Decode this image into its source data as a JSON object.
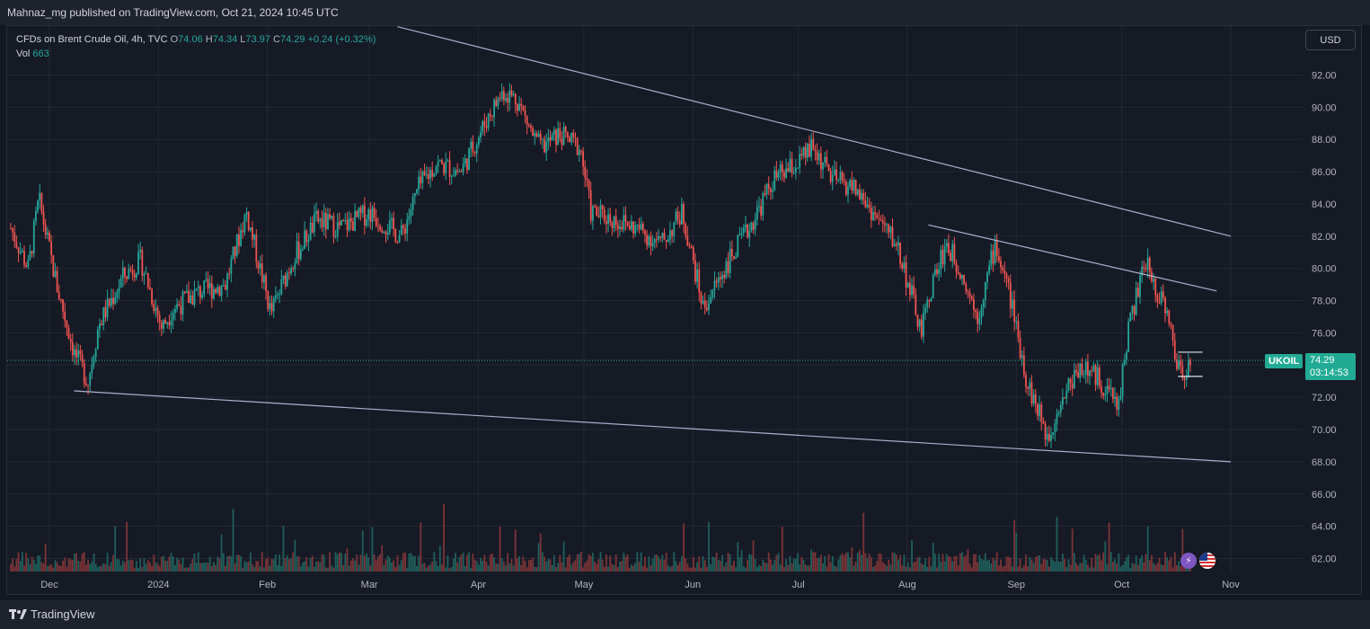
{
  "publisher": "Mahnaz_mg published on TradingView.com, Oct 21, 2024 10:45 UTC",
  "legend": {
    "symbol": "CFDs on Brent Crude Oil, 4h, TVC",
    "o_label": "O",
    "o_value": "74.06",
    "h_label": "H",
    "h_value": "74.34",
    "l_label": "L",
    "l_value": "73.97",
    "c_label": "C",
    "c_value": "74.29",
    "change": "+0.24 (+0.32%)",
    "vol_label": "Vol",
    "vol_value": "663"
  },
  "currency_button": "USD",
  "price_tag": {
    "symbol": "UKOIL",
    "price": "74.29",
    "countdown": "03:14:53"
  },
  "footer_brand": "TradingView",
  "colors": {
    "background": "#161a25",
    "up": "#26a69a",
    "down": "#ef5350",
    "trendline": "#c5cae9",
    "tag": "#22ab94"
  },
  "icons": [
    "flash-icon",
    "us-flag-icon",
    "tradingview-logo-icon"
  ],
  "chart_data": {
    "type": "candlestick",
    "symbol": "UKOIL",
    "timeframe": "4h",
    "x_range": [
      "2023-11-20",
      "2024-11-10"
    ],
    "y_ticks": [
      "92.00",
      "90.00",
      "88.00",
      "86.00",
      "84.00",
      "82.00",
      "80.00",
      "78.00",
      "76.00",
      "74.00",
      "72.00",
      "70.00",
      "68.00",
      "66.00",
      "64.00",
      "62.00"
    ],
    "ylim": [
      61.0,
      94.5
    ],
    "x_tick_labels": [
      {
        "label": "Dec",
        "date": "2023-12-01"
      },
      {
        "label": "2024",
        "date": "2024-01-01"
      },
      {
        "label": "Feb",
        "date": "2024-02-01"
      },
      {
        "label": "Mar",
        "date": "2024-03-01"
      },
      {
        "label": "Apr",
        "date": "2024-04-01"
      },
      {
        "label": "May",
        "date": "2024-05-01"
      },
      {
        "label": "Jun",
        "date": "2024-06-01"
      },
      {
        "label": "Jul",
        "date": "2024-07-01"
      },
      {
        "label": "Aug",
        "date": "2024-08-01"
      },
      {
        "label": "Sep",
        "date": "2024-09-01"
      },
      {
        "label": "Oct",
        "date": "2024-10-01"
      },
      {
        "label": "Nov",
        "date": "2024-11-01"
      }
    ],
    "price_path": [
      {
        "date": "2023-11-20",
        "price": 82.5
      },
      {
        "date": "2023-11-25",
        "price": 80.0
      },
      {
        "date": "2023-11-28",
        "price": 84.3
      },
      {
        "date": "2023-12-03",
        "price": 79.0
      },
      {
        "date": "2023-12-08",
        "price": 74.8
      },
      {
        "date": "2023-12-12",
        "price": 73.0
      },
      {
        "date": "2023-12-15",
        "price": 76.5
      },
      {
        "date": "2023-12-22",
        "price": 79.5
      },
      {
        "date": "2023-12-27",
        "price": 80.5
      },
      {
        "date": "2024-01-02",
        "price": 76.3
      },
      {
        "date": "2024-01-05",
        "price": 77.5
      },
      {
        "date": "2024-01-12",
        "price": 78.5
      },
      {
        "date": "2024-01-20",
        "price": 79.0
      },
      {
        "date": "2024-01-26",
        "price": 83.5
      },
      {
        "date": "2024-02-02",
        "price": 77.2
      },
      {
        "date": "2024-02-08",
        "price": 80.5
      },
      {
        "date": "2024-02-15",
        "price": 83.0
      },
      {
        "date": "2024-02-22",
        "price": 82.5
      },
      {
        "date": "2024-03-01",
        "price": 83.5
      },
      {
        "date": "2024-03-10",
        "price": 82.0
      },
      {
        "date": "2024-03-15",
        "price": 85.0
      },
      {
        "date": "2024-03-20",
        "price": 86.5
      },
      {
        "date": "2024-03-27",
        "price": 86.0
      },
      {
        "date": "2024-04-04",
        "price": 89.5
      },
      {
        "date": "2024-04-08",
        "price": 91.0
      },
      {
        "date": "2024-04-12",
        "price": 90.5
      },
      {
        "date": "2024-04-17",
        "price": 88.0
      },
      {
        "date": "2024-04-19",
        "price": 87.5
      },
      {
        "date": "2024-04-24",
        "price": 88.3
      },
      {
        "date": "2024-04-30",
        "price": 87.5
      },
      {
        "date": "2024-05-03",
        "price": 83.5
      },
      {
        "date": "2024-05-10",
        "price": 83.0
      },
      {
        "date": "2024-05-16",
        "price": 82.5
      },
      {
        "date": "2024-05-23",
        "price": 81.5
      },
      {
        "date": "2024-05-29",
        "price": 83.5
      },
      {
        "date": "2024-06-04",
        "price": 77.5
      },
      {
        "date": "2024-06-10",
        "price": 80.0
      },
      {
        "date": "2024-06-17",
        "price": 82.5
      },
      {
        "date": "2024-06-24",
        "price": 85.5
      },
      {
        "date": "2024-07-01",
        "price": 86.5
      },
      {
        "date": "2024-07-05",
        "price": 87.5
      },
      {
        "date": "2024-07-11",
        "price": 85.5
      },
      {
        "date": "2024-07-17",
        "price": 85.0
      },
      {
        "date": "2024-07-22",
        "price": 83.5
      },
      {
        "date": "2024-07-29",
        "price": 81.5
      },
      {
        "date": "2024-08-02",
        "price": 78.5
      },
      {
        "date": "2024-08-05",
        "price": 76.0
      },
      {
        "date": "2024-08-08",
        "price": 79.0
      },
      {
        "date": "2024-08-12",
        "price": 81.5
      },
      {
        "date": "2024-08-16",
        "price": 80.0
      },
      {
        "date": "2024-08-21",
        "price": 77.0
      },
      {
        "date": "2024-08-26",
        "price": 81.5
      },
      {
        "date": "2024-08-30",
        "price": 78.5
      },
      {
        "date": "2024-09-04",
        "price": 73.0
      },
      {
        "date": "2024-09-10",
        "price": 69.5
      },
      {
        "date": "2024-09-13",
        "price": 71.5
      },
      {
        "date": "2024-09-19",
        "price": 74.0
      },
      {
        "date": "2024-09-25",
        "price": 73.0
      },
      {
        "date": "2024-09-30",
        "price": 71.5
      },
      {
        "date": "2024-10-03",
        "price": 76.5
      },
      {
        "date": "2024-10-08",
        "price": 80.5
      },
      {
        "date": "2024-10-10",
        "price": 79.0
      },
      {
        "date": "2024-10-14",
        "price": 77.5
      },
      {
        "date": "2024-10-16",
        "price": 74.5
      },
      {
        "date": "2024-10-18",
        "price": 73.5
      },
      {
        "date": "2024-10-21",
        "price": 74.29
      }
    ],
    "trendlines": [
      {
        "from": {
          "date": "2023-12-08",
          "price": 72.4
        },
        "to": {
          "date": "2024-11-01",
          "price": 68.0
        }
      },
      {
        "from": {
          "date": "2024-03-09",
          "price": 95.0
        },
        "to": {
          "date": "2024-11-01",
          "price": 82.0
        }
      },
      {
        "from": {
          "date": "2024-08-07",
          "price": 82.7
        },
        "to": {
          "date": "2024-10-28",
          "price": 78.6
        }
      }
    ],
    "range_box": {
      "from": "2024-10-17",
      "to": "2024-10-24",
      "high": 74.8,
      "low": 73.3
    },
    "last_price": 74.29,
    "volume": {
      "last": 663
    }
  }
}
